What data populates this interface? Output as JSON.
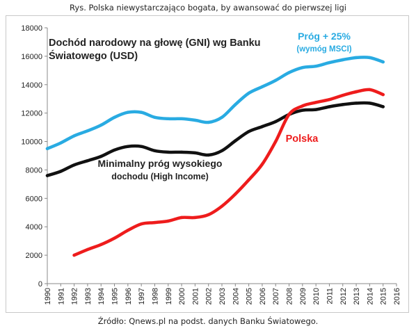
{
  "caption_top": "Rys. Polska niewystarczająco bogata, by awansować do pierwszej ligi",
  "caption_bottom": "Źródło: Qnews.pl na podst. danych Banku Światowego.",
  "chart_data": {
    "type": "line",
    "title_lines": [
      "Dochód narodowy na głowę (GNI) wg Banku",
      "Światowego (USD)"
    ],
    "x": [
      1990,
      1991,
      1992,
      1993,
      1994,
      1995,
      1996,
      1997,
      1998,
      1999,
      2000,
      2001,
      2002,
      2003,
      2004,
      2005,
      2006,
      2007,
      2008,
      2009,
      2010,
      2011,
      2012,
      2013,
      2014,
      2015
    ],
    "x_ticks": [
      1990,
      1991,
      1992,
      1993,
      1994,
      1995,
      1996,
      1997,
      1998,
      1999,
      2000,
      2001,
      2002,
      2003,
      2004,
      2005,
      2006,
      2007,
      2008,
      2009,
      2010,
      2011,
      2012,
      2013,
      2014,
      2015,
      2016
    ],
    "xlim": [
      1990,
      2016
    ],
    "ylim": [
      0,
      18000
    ],
    "y_ticks": [
      0,
      2000,
      4000,
      6000,
      8000,
      10000,
      12000,
      14000,
      16000,
      18000
    ],
    "grid": false,
    "series": [
      {
        "key": "msci",
        "label_lines": [
          "Próg + 25%",
          "(wymóg MSCI)"
        ],
        "color": "#29abe2",
        "values": [
          9500,
          9900,
          10400,
          10750,
          11150,
          11700,
          12050,
          12050,
          11700,
          11600,
          11600,
          11500,
          11350,
          11700,
          12600,
          13400,
          13850,
          14300,
          14850,
          15200,
          15300,
          15550,
          15750,
          15900,
          15900,
          15600
        ]
      },
      {
        "key": "high_income",
        "label_lines": [
          "Minimalny próg wysokiego",
          "dochodu  (High Income)"
        ],
        "color": "#111111",
        "values": [
          7600,
          7900,
          8350,
          8650,
          8950,
          9400,
          9650,
          9650,
          9350,
          9250,
          9250,
          9200,
          9050,
          9350,
          10050,
          10700,
          11050,
          11400,
          11900,
          12200,
          12250,
          12450,
          12600,
          12700,
          12700,
          12450
        ]
      },
      {
        "key": "polska",
        "label_lines": [
          "Polska"
        ],
        "color": "#ee1c1c",
        "values": [
          null,
          null,
          2000,
          2400,
          2750,
          3200,
          3750,
          4200,
          4300,
          4400,
          4650,
          4650,
          4850,
          5450,
          6300,
          7300,
          8400,
          10000,
          11900,
          12500,
          12750,
          12950,
          13250,
          13500,
          13650,
          13300
        ]
      }
    ]
  }
}
